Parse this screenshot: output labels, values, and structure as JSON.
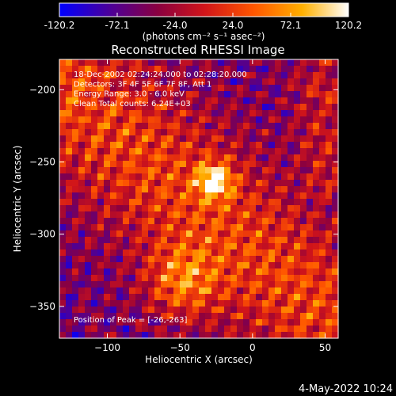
{
  "colorbar": {
    "ticks": [
      "-120.2",
      "-72.1",
      "-24.0",
      "24.0",
      "72.1",
      "120.2"
    ],
    "unit_label": "(photons cm⁻² s⁻¹ asec⁻²)"
  },
  "chart_data": {
    "type": "heatmap",
    "title": "Reconstructed RHESSI Image",
    "xlabel": "Heliocentric X (arcsec)",
    "ylabel": "Heliocentric Y (arcsec)",
    "xlim": [
      -133,
      59
    ],
    "ylim": [
      -372,
      -179
    ],
    "xticks": [
      -100,
      -50,
      0,
      50
    ],
    "yticks": [
      -200,
      -250,
      -300,
      -350
    ],
    "value_range": [
      -120.2,
      120.2
    ],
    "colormap": [
      "#0000ff",
      "#4a009c",
      "#8a0040",
      "#d0141a",
      "#ff5500",
      "#ffb000",
      "#ffffff"
    ],
    "peak": [
      -26,
      -263
    ],
    "annotations": [
      "18-Dec-2002 02:24:24.000 to 02:28:20.000",
      "Detectors: 3F 4F 5F 6F 7F 8F, Att 1",
      "Energy Range: 3.0 - 6.0 keV",
      "Clean    Total counts: 6.24E+03",
      "Position of Peak = [-26,-263]"
    ]
  },
  "footer": {
    "timestamp": "4-May-2022 10:24"
  }
}
